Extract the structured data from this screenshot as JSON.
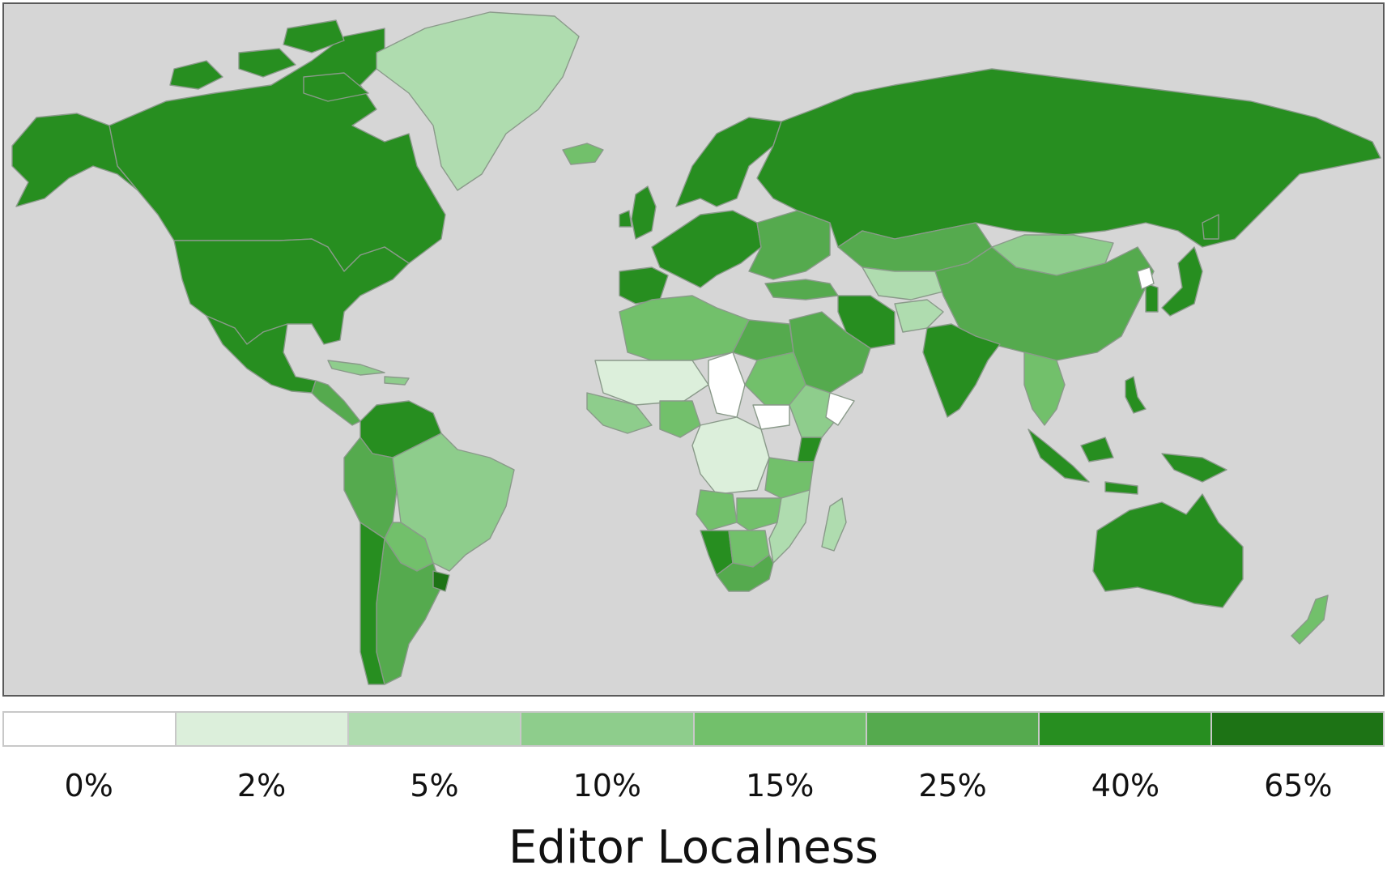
{
  "legend": {
    "title": "Editor Localness",
    "bins": [
      {
        "label": "0%",
        "color": "#ffffff"
      },
      {
        "label": "2%",
        "color": "#dcefdb"
      },
      {
        "label": "5%",
        "color": "#afdcaf"
      },
      {
        "label": "10%",
        "color": "#8ecd8c"
      },
      {
        "label": "15%",
        "color": "#72c06b"
      },
      {
        "label": "25%",
        "color": "#55aa4e"
      },
      {
        "label": "40%",
        "color": "#278e20"
      },
      {
        "label": "65%",
        "color": "#1d7315"
      }
    ]
  },
  "map": {
    "ocean_color": "#d6d6d6",
    "regions": [
      {
        "name": "canada",
        "bin": 6
      },
      {
        "name": "alaska",
        "bin": 6
      },
      {
        "name": "united-states",
        "bin": 6
      },
      {
        "name": "greenland",
        "bin": 2
      },
      {
        "name": "iceland",
        "bin": 4
      },
      {
        "name": "mexico",
        "bin": 6
      },
      {
        "name": "central-america",
        "bin": 5
      },
      {
        "name": "caribbean",
        "bin": 3
      },
      {
        "name": "colombia-venezuela",
        "bin": 6
      },
      {
        "name": "peru-ecuador",
        "bin": 5
      },
      {
        "name": "brazil",
        "bin": 3
      },
      {
        "name": "bolivia-paraguay",
        "bin": 4
      },
      {
        "name": "argentina",
        "bin": 5
      },
      {
        "name": "chile",
        "bin": 6
      },
      {
        "name": "uruguay",
        "bin": 7
      },
      {
        "name": "europe-west",
        "bin": 6
      },
      {
        "name": "scandinavia",
        "bin": 6
      },
      {
        "name": "united-kingdom",
        "bin": 6
      },
      {
        "name": "iberia",
        "bin": 6
      },
      {
        "name": "eastern-europe",
        "bin": 5
      },
      {
        "name": "russia",
        "bin": 6
      },
      {
        "name": "kazakhstan",
        "bin": 5
      },
      {
        "name": "central-asia",
        "bin": 2
      },
      {
        "name": "mongolia",
        "bin": 3
      },
      {
        "name": "china",
        "bin": 5
      },
      {
        "name": "korea",
        "bin": 6
      },
      {
        "name": "north-korea",
        "bin": 0
      },
      {
        "name": "japan",
        "bin": 6
      },
      {
        "name": "turkey",
        "bin": 5
      },
      {
        "name": "iran",
        "bin": 6
      },
      {
        "name": "afghanistan",
        "bin": 2
      },
      {
        "name": "arabia",
        "bin": 5
      },
      {
        "name": "india",
        "bin": 6
      },
      {
        "name": "southeast-asia",
        "bin": 4
      },
      {
        "name": "indonesia-west",
        "bin": 6
      },
      {
        "name": "philippines",
        "bin": 6
      },
      {
        "name": "new-guinea",
        "bin": 6
      },
      {
        "name": "australia",
        "bin": 6
      },
      {
        "name": "new-zealand",
        "bin": 4
      },
      {
        "name": "north-africa",
        "bin": 4
      },
      {
        "name": "egypt",
        "bin": 5
      },
      {
        "name": "sahel",
        "bin": 1
      },
      {
        "name": "west-africa",
        "bin": 3
      },
      {
        "name": "nigeria",
        "bin": 4
      },
      {
        "name": "chad",
        "bin": 0
      },
      {
        "name": "south-sudan",
        "bin": 0
      },
      {
        "name": "sudan",
        "bin": 4
      },
      {
        "name": "ethiopia",
        "bin": 3
      },
      {
        "name": "somalia",
        "bin": 0
      },
      {
        "name": "kenya",
        "bin": 6
      },
      {
        "name": "congo",
        "bin": 1
      },
      {
        "name": "tanzania",
        "bin": 4
      },
      {
        "name": "angola",
        "bin": 4
      },
      {
        "name": "zambia",
        "bin": 4
      },
      {
        "name": "mozambique",
        "bin": 2
      },
      {
        "name": "namibia",
        "bin": 6
      },
      {
        "name": "botswana",
        "bin": 4
      },
      {
        "name": "south-africa",
        "bin": 5
      },
      {
        "name": "madagascar",
        "bin": 2
      }
    ]
  }
}
